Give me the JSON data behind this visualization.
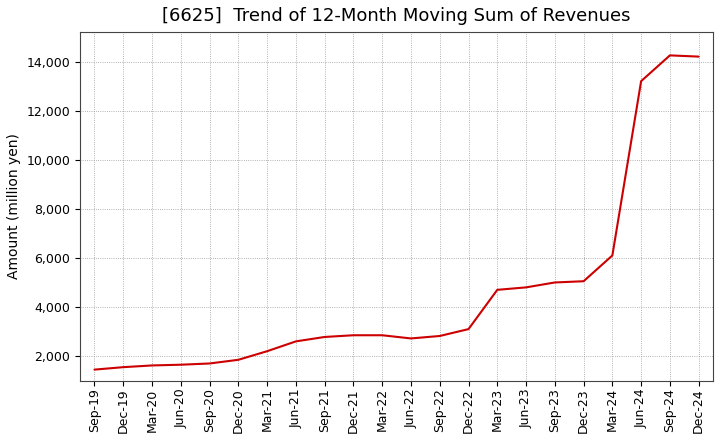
{
  "title": "[6625]  Trend of 12-Month Moving Sum of Revenues",
  "ylabel": "Amount (million yen)",
  "line_color": "#cc0000",
  "background_color": "#ffffff",
  "grid_color": "#999999",
  "x_labels": [
    "Sep-19",
    "Dec-19",
    "Mar-20",
    "Jun-20",
    "Sep-20",
    "Dec-20",
    "Mar-21",
    "Jun-21",
    "Sep-21",
    "Dec-21",
    "Mar-22",
    "Jun-22",
    "Sep-22",
    "Dec-22",
    "Mar-23",
    "Jun-23",
    "Sep-23",
    "Dec-23",
    "Mar-24",
    "Jun-24",
    "Sep-24",
    "Dec-24"
  ],
  "values": [
    1450,
    1550,
    1620,
    1650,
    1700,
    1850,
    2200,
    2600,
    2780,
    2850,
    2850,
    2720,
    2820,
    3100,
    4700,
    4800,
    5000,
    5050,
    6100,
    13200,
    14250,
    14200
  ],
  "ylim": [
    1000,
    15200
  ],
  "yticks": [
    2000,
    4000,
    6000,
    8000,
    10000,
    12000,
    14000
  ],
  "title_fontsize": 13,
  "label_fontsize": 10,
  "tick_fontsize": 9
}
